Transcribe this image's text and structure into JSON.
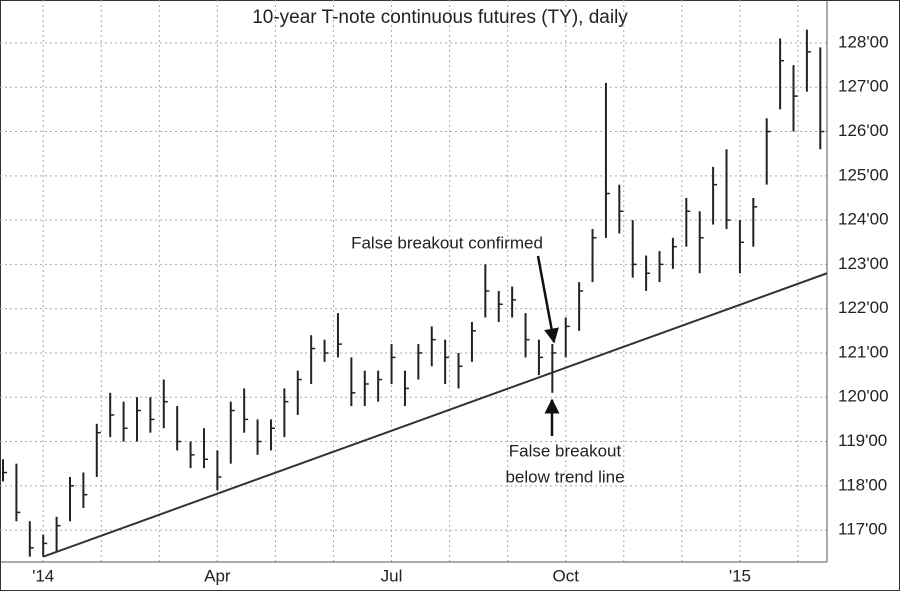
{
  "chart_data": {
    "type": "hlc",
    "title": "10-year T-note continuous futures (TY), daily",
    "categories": [
      null,
      null,
      null,
      "'14",
      null,
      null,
      null,
      null,
      null,
      null,
      null,
      null,
      null,
      null,
      null,
      null,
      "Apr",
      null,
      null,
      null,
      null,
      null,
      null,
      null,
      null,
      null,
      null,
      null,
      null,
      "Jul",
      null,
      null,
      null,
      null,
      null,
      null,
      null,
      null,
      null,
      null,
      null,
      null,
      "Oct",
      null,
      null,
      null,
      null,
      null,
      null,
      null,
      null,
      null,
      null,
      null,
      null,
      "'15",
      null,
      null,
      null,
      null,
      null,
      null
    ],
    "high": [
      118.6,
      118.5,
      117.2,
      116.9,
      117.3,
      118.2,
      118.3,
      119.4,
      120.1,
      119.9,
      120.0,
      120.0,
      120.4,
      119.8,
      119.0,
      119.3,
      118.8,
      119.9,
      120.2,
      119.5,
      119.5,
      120.2,
      120.6,
      121.4,
      121.3,
      121.9,
      120.9,
      120.6,
      120.6,
      121.2,
      120.6,
      121.2,
      121.6,
      121.3,
      121.0,
      121.7,
      123.0,
      122.4,
      122.5,
      121.9,
      121.3,
      121.2,
      121.8,
      122.6,
      123.8,
      127.1,
      124.8,
      124.0,
      123.2,
      123.3,
      123.6,
      124.5,
      124.2,
      125.2,
      125.6,
      124.0,
      124.5,
      126.3,
      128.1,
      127.5,
      128.3,
      127.9
    ],
    "low": [
      118.1,
      117.2,
      116.4,
      116.4,
      116.5,
      117.2,
      117.5,
      118.2,
      119.1,
      119.0,
      119.0,
      119.2,
      119.3,
      118.8,
      118.4,
      118.4,
      117.9,
      118.5,
      119.2,
      118.7,
      118.8,
      119.1,
      119.6,
      120.3,
      120.8,
      120.9,
      119.8,
      119.8,
      119.9,
      120.3,
      119.8,
      120.4,
      120.7,
      120.3,
      120.2,
      120.8,
      121.8,
      121.7,
      121.8,
      120.9,
      120.5,
      120.1,
      120.9,
      121.5,
      122.6,
      123.6,
      123.7,
      122.7,
      122.4,
      122.6,
      122.9,
      123.4,
      122.8,
      123.9,
      123.8,
      122.8,
      123.4,
      124.8,
      126.5,
      126.0,
      126.9,
      125.6
    ],
    "close": [
      118.3,
      117.4,
      116.6,
      116.7,
      117.1,
      118.0,
      117.8,
      119.2,
      119.6,
      119.3,
      119.7,
      119.5,
      119.9,
      119.0,
      118.7,
      118.6,
      118.2,
      119.7,
      119.5,
      119.0,
      119.3,
      119.9,
      120.4,
      121.1,
      121.0,
      121.2,
      120.1,
      120.3,
      120.4,
      120.9,
      120.2,
      121.0,
      121.3,
      120.9,
      120.7,
      121.5,
      122.4,
      122.1,
      122.2,
      121.3,
      120.9,
      121.0,
      121.6,
      122.4,
      123.6,
      124.6,
      124.2,
      123.0,
      122.8,
      123.0,
      123.4,
      124.2,
      123.6,
      124.8,
      124.0,
      123.5,
      124.3,
      126.0,
      127.6,
      126.8,
      127.8,
      126.0
    ],
    "color": "#222222",
    "ylim": [
      116.28,
      128.97
    ],
    "yticks": [
      {
        "value": 117,
        "label": "117'00"
      },
      {
        "value": 118,
        "label": "118'00"
      },
      {
        "value": 119,
        "label": "119'00"
      },
      {
        "value": 120,
        "label": "120'00"
      },
      {
        "value": 121,
        "label": "121'00"
      },
      {
        "value": 122,
        "label": "122'00"
      },
      {
        "value": 123,
        "label": "123'00"
      },
      {
        "value": 124,
        "label": "124'00"
      },
      {
        "value": 125,
        "label": "125'00"
      },
      {
        "value": 126,
        "label": "126'00"
      },
      {
        "value": 127,
        "label": "127'00"
      },
      {
        "value": 128,
        "label": "128'00"
      }
    ],
    "grid": true,
    "trend_line": {
      "values": [
        116.4,
        122.8
      ]
    },
    "annotations": [
      "False breakout confirmed",
      "False breakout",
      "below trend line"
    ]
  }
}
